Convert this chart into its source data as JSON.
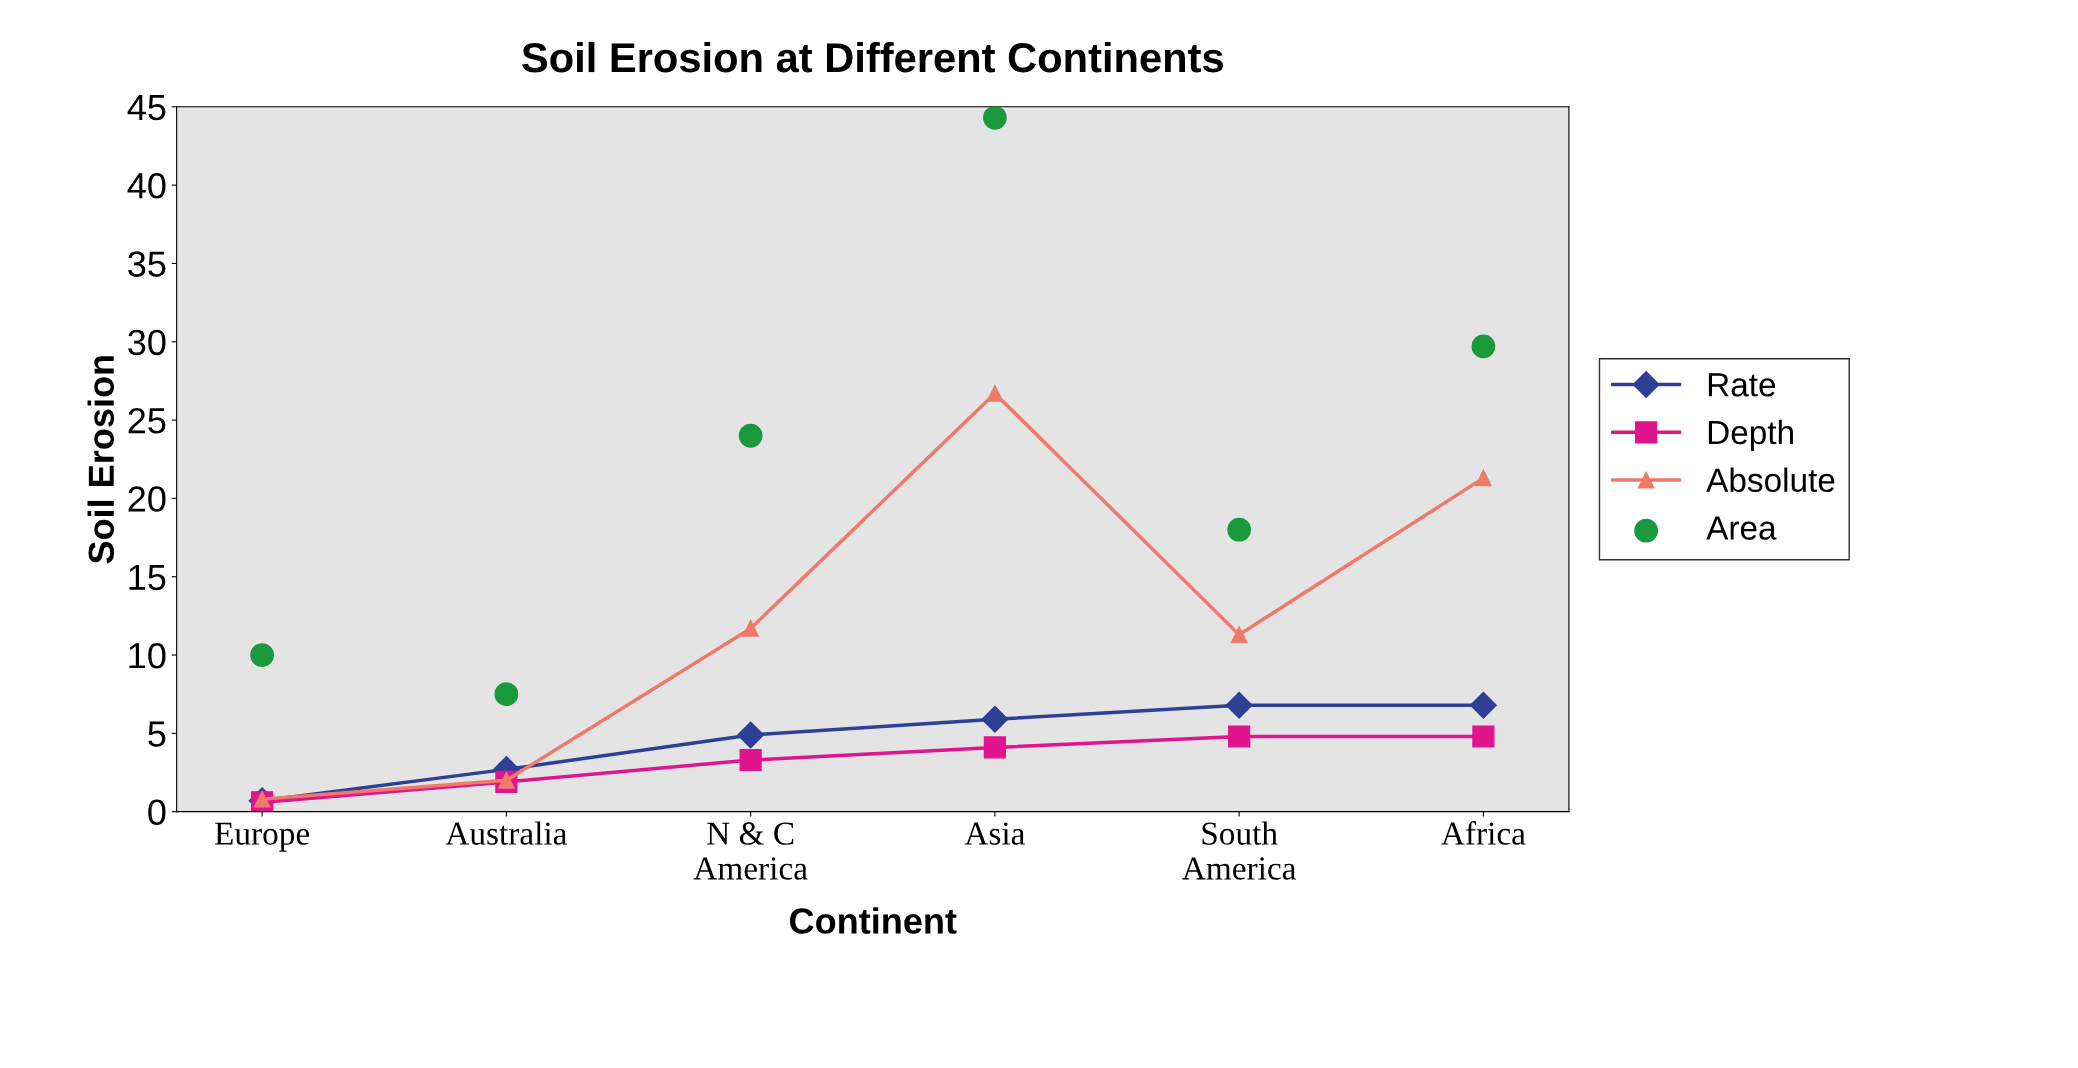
{
  "chart_data": {
    "type": "line",
    "title": "Soil Erosion at Different Continents",
    "xlabel": "Continent",
    "ylabel": "Soil Erosion",
    "categories": [
      "Europe",
      "Australia",
      "N & C\nAmerica",
      "Asia",
      "South\nAmerica",
      "Africa"
    ],
    "series": [
      {
        "name": "Rate",
        "color": "#2e3f96",
        "marker": "diamond",
        "values": [
          0.7,
          2.7,
          4.9,
          5.9,
          6.8,
          6.8
        ]
      },
      {
        "name": "Depth",
        "color": "#e0158e",
        "marker": "square",
        "values": [
          0.6,
          1.9,
          3.3,
          4.1,
          4.8,
          4.8
        ]
      },
      {
        "name": "Absolute",
        "color": "#f07a6a",
        "marker": "triangle",
        "values": [
          0.8,
          2.0,
          11.7,
          26.7,
          11.3,
          21.3
        ]
      },
      {
        "name": "Area",
        "type": "scatter",
        "color": "#1a9a3c",
        "marker": "circle",
        "values": [
          10,
          7.5,
          24,
          44.3,
          18,
          29.7
        ]
      }
    ],
    "ylim": [
      0,
      45
    ],
    "yticks": [
      0,
      5,
      10,
      15,
      20,
      25,
      30,
      35,
      40,
      45
    ],
    "grid": false,
    "legend": "right"
  }
}
